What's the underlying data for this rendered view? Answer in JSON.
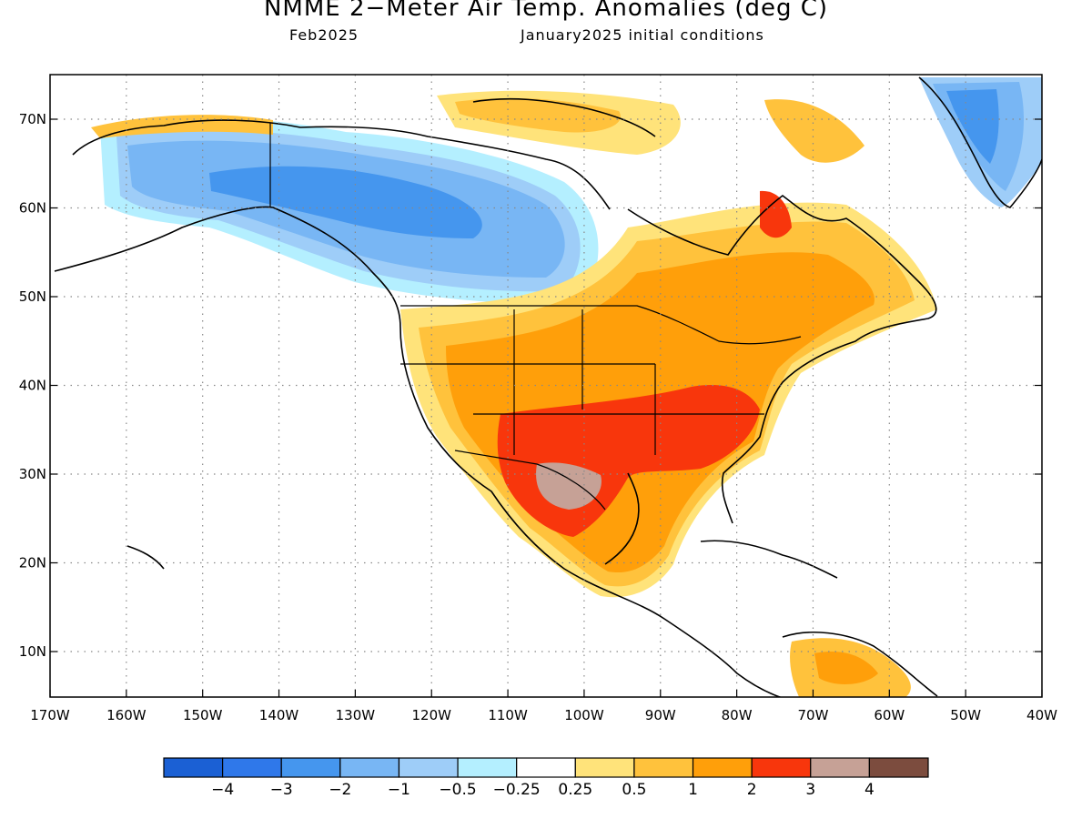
{
  "header": {
    "title": "NMME 2−Meter Air Temp. Anomalies (deg C)",
    "valid_month": "Feb2025",
    "init": "January2025 initial conditions"
  },
  "map": {
    "lat_labels": [
      "70N",
      "60N",
      "50N",
      "40N",
      "30N",
      "20N",
      "10N"
    ],
    "lon_labels": [
      "170W",
      "160W",
      "150W",
      "140W",
      "130W",
      "120W",
      "110W",
      "100W",
      "90W",
      "80W",
      "70W",
      "60W",
      "50W",
      "40W"
    ],
    "grid": "dotted"
  },
  "legend": {
    "colors": [
      "#1b60d4",
      "#2f78ea",
      "#4596ee",
      "#78b6f4",
      "#9ecdf8",
      "#b4efff",
      "#ffffff",
      "#ffe37a",
      "#ffc23c",
      "#ff9f0a",
      "#f8360c",
      "#c6a196",
      "#7c4c3e"
    ],
    "labels": [
      "−4",
      "−3",
      "−2",
      "−1",
      "−0.5",
      "−0.25",
      "0.25",
      "0.5",
      "1",
      "2",
      "3",
      "4"
    ]
  }
}
